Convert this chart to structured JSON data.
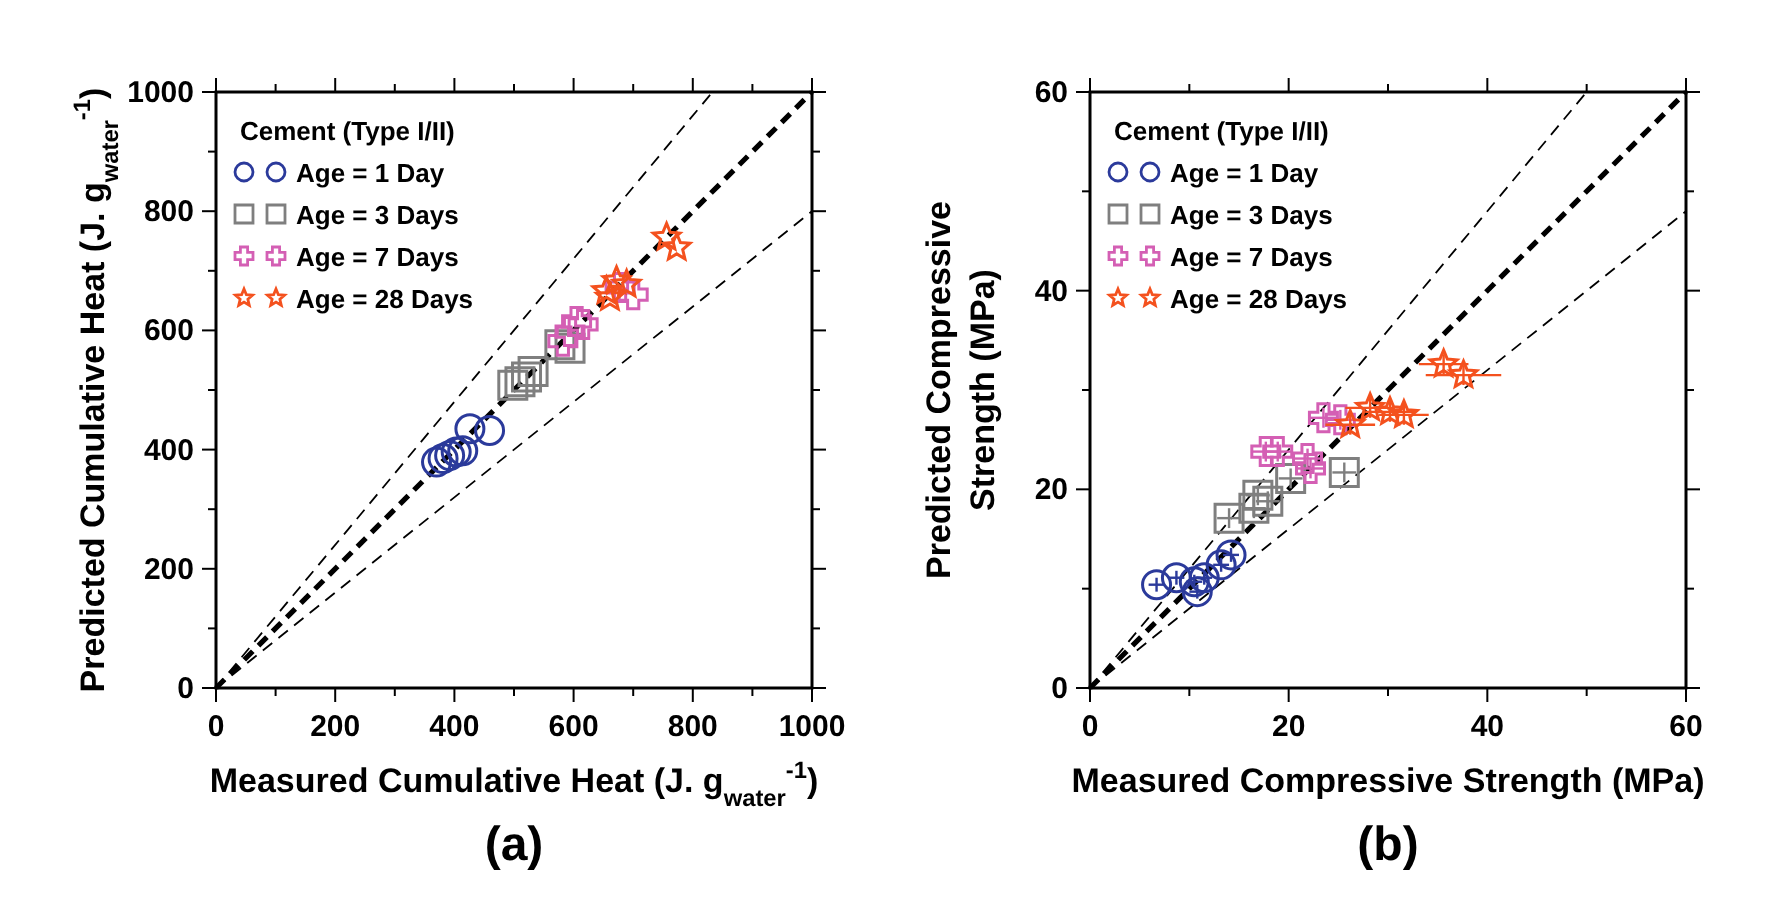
{
  "chart_data": [
    {
      "type": "scatter",
      "xlabel": "Measured Cumulative Heat (J. g$_{water}$$^{-1}$)",
      "ylabel": "Predicted Cumulative Heat (J. g$_{water}$$^{-1}$)",
      "legend_title": "Cement (Type I/II)",
      "legend": "top left",
      "annotations": [
        "(a)"
      ],
      "xlim": [
        0,
        1000
      ],
      "ylim": [
        0,
        1000
      ],
      "xticks": [
        0,
        {
          "value": 100,
          "label": null
        },
        200,
        {
          "value": 300,
          "label": null
        },
        400,
        {
          "value": 500,
          "label": null
        },
        600,
        {
          "value": 700,
          "label": null
        },
        800,
        {
          "value": 900,
          "label": null
        },
        1000
      ],
      "yticks": [
        0,
        {
          "value": 100,
          "label": null
        },
        200,
        {
          "value": 300,
          "label": null
        },
        400,
        {
          "value": 500,
          "label": null
        },
        600,
        {
          "value": 700,
          "label": null
        },
        800,
        {
          "value": 900,
          "label": null
        },
        1000
      ],
      "series": [
        {
          "type": "line",
          "color": "#000000",
          "line_style": "dashed",
          "marker": "none",
          "x": [
            0,
            833
          ],
          "values": [
            0,
            1000
          ]
        },
        {
          "type": "line",
          "color": "#000000",
          "line_style": "dashed",
          "marker": "none",
          "x": [
            0,
            1000
          ],
          "values": [
            0,
            800
          ]
        },
        {
          "type": "line",
          "color": "#000000",
          "line_style": "dashed",
          "marker": "none",
          "x": [
            0,
            1000
          ],
          "values": [
            0,
            1000
          ]
        },
        {
          "name": "Age = 1 Day",
          "color": "#2b3a9b",
          "marker": "circle",
          "x": [
            370,
            381,
            392,
            403,
            414,
            426,
            459
          ],
          "values": [
            379,
            385,
            390,
            396,
            398,
            435,
            432
          ]
        },
        {
          "name": "Age = 3 Days",
          "color": "#7f7f7f",
          "marker": "square",
          "x": [
            498,
            510,
            521,
            532,
            577,
            594
          ],
          "values": [
            508,
            514,
            522,
            531,
            576,
            570
          ]
        },
        {
          "name": "Age = 7 Days",
          "color": "#d45fb4",
          "marker": "cross",
          "x": [
            582,
            594,
            605,
            616,
            678,
            700
          ],
          "values": [
            582,
            598,
            615,
            610,
            672,
            660
          ]
        },
        {
          "name": "Age = 28 Days",
          "color": "#f4511e",
          "marker": "star",
          "x": [
            655,
            661,
            672,
            689,
            756,
            773
          ],
          "values": [
            666,
            655,
            683,
            677,
            756,
            739
          ]
        }
      ]
    },
    {
      "type": "scatter",
      "xlabel": "Measured Compressive Strength (MPa)",
      "ylabel": "Predicted Compressive\nStrength (MPa)",
      "legend_title": "Cement (Type I/II)",
      "legend": "top left",
      "annotations": [
        "(b)"
      ],
      "xlim": [
        0,
        60
      ],
      "ylim": [
        0,
        60
      ],
      "xticks": [
        0,
        {
          "value": 10,
          "label": null
        },
        20,
        {
          "value": 30,
          "label": null
        },
        40,
        {
          "value": 50,
          "label": null
        },
        60
      ],
      "yticks": [
        0,
        {
          "value": 10,
          "label": null
        },
        20,
        {
          "value": 30,
          "label": null
        },
        40,
        {
          "value": 50,
          "label": null
        },
        60
      ],
      "series": [
        {
          "type": "line",
          "color": "#000000",
          "line_style": "dashed",
          "marker": "none",
          "x": [
            0,
            50
          ],
          "values": [
            0,
            60
          ]
        },
        {
          "type": "line",
          "color": "#000000",
          "line_style": "dashed",
          "marker": "none",
          "x": [
            0,
            60
          ],
          "values": [
            0,
            48
          ]
        },
        {
          "type": "line",
          "color": "#000000",
          "line_style": "dashed",
          "marker": "none",
          "x": [
            0,
            60
          ],
          "values": [
            0,
            60
          ]
        },
        {
          "name": "Age = 1 Day",
          "color": "#2b3a9b",
          "marker": "circle",
          "x": [
            6.7,
            8.7,
            10.5,
            10.8,
            11.5,
            13.2,
            14.2
          ],
          "values": [
            10.4,
            11.1,
            10.7,
            9.7,
            11.1,
            12.4,
            13.4
          ],
          "errors": [
            0.7,
            0.7,
            0.7,
            0.7,
            0.7,
            0.7,
            0.7
          ],
          "xerrors": [
            0.8,
            0.8,
            0.8,
            0.8,
            0.8,
            0.8,
            0.8
          ]
        },
        {
          "name": "Age = 3 Days",
          "color": "#7f7f7f",
          "marker": "square",
          "x": [
            14.0,
            16.5,
            16.9,
            17.9,
            20.2,
            25.6
          ],
          "values": [
            17.1,
            18.1,
            19.4,
            18.8,
            21.1,
            21.7
          ],
          "errors": [
            1,
            1,
            1,
            1,
            1,
            1
          ],
          "xerrors": [
            1.2,
            1.2,
            1.2,
            1.2,
            1.2,
            1.2
          ]
        },
        {
          "name": "Age = 7 Days",
          "color": "#d45fb4",
          "marker": "cross",
          "x": [
            17.7,
            18.9,
            21.9,
            22.2,
            23.5,
            25.2
          ],
          "values": [
            23.8,
            23.8,
            23.1,
            22.1,
            27.2,
            27.0
          ],
          "errors": [
            1,
            1,
            1,
            1,
            1,
            1
          ],
          "xerrors": [
            1.5,
            1.5,
            1.5,
            1.5,
            1.5,
            1.5
          ]
        },
        {
          "name": "Age = 28 Days",
          "color": "#f4511e",
          "marker": "star",
          "x": [
            26.2,
            28.2,
            30.2,
            31.6,
            35.6,
            37.6
          ],
          "values": [
            26.5,
            28.2,
            27.8,
            27.5,
            32.6,
            31.5
          ],
          "errors": [
            1,
            1,
            1,
            1,
            1,
            1
          ],
          "xerrors": [
            2.5,
            2.5,
            2.5,
            2.5,
            2.5,
            3.8
          ]
        }
      ]
    }
  ]
}
